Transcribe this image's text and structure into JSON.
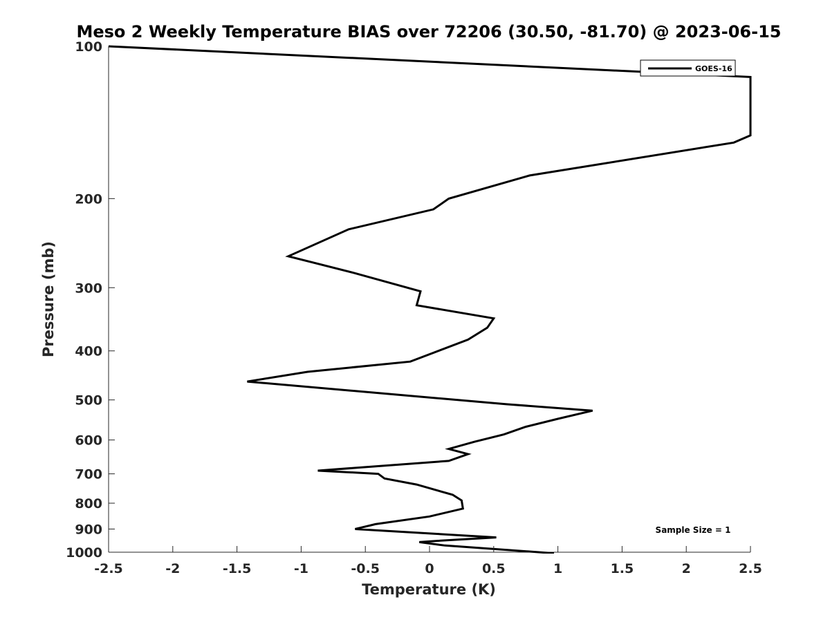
{
  "chart_data": {
    "type": "line",
    "title": "Meso 2 Weekly Temperature BIAS over 72206 (30.50, -81.70) @ 2023-06-15",
    "xlabel": "Temperature (K)",
    "ylabel": "Pressure (mb)",
    "xlim": [
      -2.5,
      2.5
    ],
    "ylim": [
      100,
      1000
    ],
    "y_scale": "log",
    "y_reversed": true,
    "grid": false,
    "legend_position": "top-right",
    "x_ticks": [
      -2.5,
      -2,
      -1.5,
      -1,
      -0.5,
      0,
      0.5,
      1,
      1.5,
      2,
      2.5
    ],
    "x_tick_labels": [
      "-2.5",
      "-2",
      "-1.5",
      "-1",
      "-0.5",
      "0",
      "0.5",
      "1",
      "1.5",
      "2",
      "2.5"
    ],
    "y_ticks": [
      100,
      200,
      300,
      400,
      500,
      600,
      700,
      800,
      900,
      1000
    ],
    "y_tick_labels": [
      "100",
      "200",
      "300",
      "400",
      "500",
      "600",
      "700",
      "800",
      "900",
      "1000"
    ],
    "annotation": "Sample Size = 1",
    "series": [
      {
        "name": "GOES-16",
        "color": "#000000",
        "x": [
          -2.5,
          2.5,
          2.5,
          2.37,
          0.78,
          0.15,
          0.03,
          -0.63,
          -1.1,
          -0.6,
          -0.07,
          -0.1,
          0.5,
          0.45,
          0.3,
          -0.15,
          -0.95,
          -1.42,
          0.6,
          1.27,
          1.0,
          0.75,
          0.58,
          0.35,
          0.15,
          0.3,
          0.15,
          -0.87,
          -0.4,
          -0.35,
          -0.1,
          0.18,
          0.25,
          0.26,
          0.0,
          -0.42,
          -0.58,
          0.52,
          0.05,
          -0.08,
          0.12,
          0.97
        ],
        "y": [
          100,
          115,
          150,
          155,
          180,
          200,
          210,
          230,
          260,
          280,
          305,
          325,
          345,
          360,
          380,
          420,
          440,
          460,
          510,
          525,
          545,
          565,
          585,
          605,
          625,
          640,
          660,
          690,
          700,
          715,
          735,
          770,
          790,
          820,
          850,
          880,
          900,
          935,
          950,
          955,
          970,
          1005
        ]
      }
    ]
  }
}
